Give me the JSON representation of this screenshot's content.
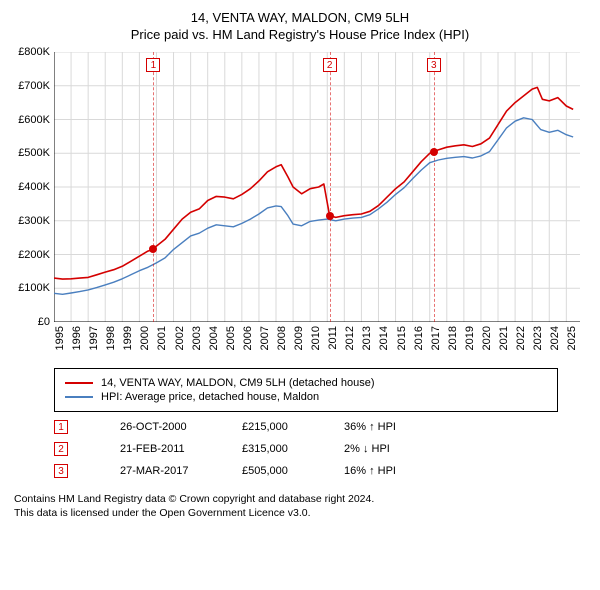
{
  "title": "14, VENTA WAY, MALDON, CM9 5LH",
  "subtitle": "Price paid vs. HM Land Registry's House Price Index (HPI)",
  "chart": {
    "type": "line",
    "background_color": "#ffffff",
    "grid_color": "#d9d9d9",
    "axis_color": "#000000",
    "xlim": [
      1995,
      2025.8
    ],
    "ylim": [
      0,
      800000
    ],
    "ytick_step": 100000,
    "yticks_labels": [
      "£0",
      "£100K",
      "£200K",
      "£300K",
      "£400K",
      "£500K",
      "£600K",
      "£700K",
      "£800K"
    ],
    "xticks": [
      1995,
      1996,
      1997,
      1998,
      1999,
      2000,
      2001,
      2002,
      2003,
      2004,
      2005,
      2006,
      2007,
      2008,
      2009,
      2010,
      2011,
      2012,
      2013,
      2014,
      2015,
      2016,
      2017,
      2018,
      2019,
      2020,
      2021,
      2022,
      2023,
      2024,
      2025
    ],
    "label_fontsize": 11,
    "series": [
      {
        "id": "price_paid",
        "label": "14, VENTA WAY, MALDON, CM9 5LH (detached house)",
        "color": "#d40000",
        "line_width": 1.6,
        "fill": "none",
        "data": [
          [
            1995,
            130000
          ],
          [
            1995.5,
            127000
          ],
          [
            1996,
            128000
          ],
          [
            1996.5,
            130000
          ],
          [
            1997,
            132000
          ],
          [
            1997.5,
            140000
          ],
          [
            1998,
            148000
          ],
          [
            1998.5,
            155000
          ],
          [
            1999,
            165000
          ],
          [
            1999.5,
            180000
          ],
          [
            2000,
            195000
          ],
          [
            2000.5,
            210000
          ],
          [
            2000.82,
            215000
          ],
          [
            2001,
            225000
          ],
          [
            2001.5,
            245000
          ],
          [
            2002,
            275000
          ],
          [
            2002.5,
            305000
          ],
          [
            2003,
            325000
          ],
          [
            2003.5,
            335000
          ],
          [
            2004,
            360000
          ],
          [
            2004.5,
            372000
          ],
          [
            2005,
            370000
          ],
          [
            2005.5,
            365000
          ],
          [
            2006,
            378000
          ],
          [
            2006.5,
            395000
          ],
          [
            2007,
            418000
          ],
          [
            2007.5,
            445000
          ],
          [
            2008,
            460000
          ],
          [
            2008.3,
            466000
          ],
          [
            2008.7,
            430000
          ],
          [
            2009,
            400000
          ],
          [
            2009.5,
            380000
          ],
          [
            2010,
            395000
          ],
          [
            2010.5,
            400000
          ],
          [
            2010.8,
            409000
          ],
          [
            2011.14,
            315000
          ],
          [
            2011.5,
            310000
          ],
          [
            2012,
            315000
          ],
          [
            2012.5,
            318000
          ],
          [
            2013,
            320000
          ],
          [
            2013.5,
            328000
          ],
          [
            2014,
            345000
          ],
          [
            2014.5,
            370000
          ],
          [
            2015,
            395000
          ],
          [
            2015.5,
            415000
          ],
          [
            2016,
            445000
          ],
          [
            2016.5,
            475000
          ],
          [
            2017,
            500000
          ],
          [
            2017.24,
            505000
          ],
          [
            2017.5,
            510000
          ],
          [
            2018,
            518000
          ],
          [
            2018.5,
            522000
          ],
          [
            2019,
            525000
          ],
          [
            2019.5,
            520000
          ],
          [
            2020,
            528000
          ],
          [
            2020.5,
            545000
          ],
          [
            2021,
            585000
          ],
          [
            2021.5,
            625000
          ],
          [
            2022,
            650000
          ],
          [
            2022.5,
            670000
          ],
          [
            2023,
            690000
          ],
          [
            2023.3,
            695000
          ],
          [
            2023.6,
            660000
          ],
          [
            2024,
            655000
          ],
          [
            2024.5,
            665000
          ],
          [
            2025,
            640000
          ],
          [
            2025.4,
            630000
          ]
        ]
      },
      {
        "id": "hpi",
        "label": "HPI: Average price, detached house, Maldon",
        "color": "#4a7fbf",
        "line_width": 1.4,
        "fill": "none",
        "data": [
          [
            1995,
            85000
          ],
          [
            1995.5,
            82000
          ],
          [
            1996,
            86000
          ],
          [
            1996.5,
            90000
          ],
          [
            1997,
            95000
          ],
          [
            1997.5,
            102000
          ],
          [
            1998,
            110000
          ],
          [
            1998.5,
            118000
          ],
          [
            1999,
            128000
          ],
          [
            1999.5,
            140000
          ],
          [
            2000,
            152000
          ],
          [
            2000.5,
            162000
          ],
          [
            2001,
            175000
          ],
          [
            2001.5,
            190000
          ],
          [
            2002,
            215000
          ],
          [
            2002.5,
            235000
          ],
          [
            2003,
            255000
          ],
          [
            2003.5,
            263000
          ],
          [
            2004,
            278000
          ],
          [
            2004.5,
            288000
          ],
          [
            2005,
            285000
          ],
          [
            2005.5,
            282000
          ],
          [
            2006,
            292000
          ],
          [
            2006.5,
            305000
          ],
          [
            2007,
            320000
          ],
          [
            2007.5,
            338000
          ],
          [
            2008,
            344000
          ],
          [
            2008.3,
            342000
          ],
          [
            2008.7,
            315000
          ],
          [
            2009,
            290000
          ],
          [
            2009.5,
            285000
          ],
          [
            2010,
            298000
          ],
          [
            2010.5,
            302000
          ],
          [
            2011,
            305000
          ],
          [
            2011.5,
            300000
          ],
          [
            2012,
            305000
          ],
          [
            2012.5,
            308000
          ],
          [
            2013,
            310000
          ],
          [
            2013.5,
            318000
          ],
          [
            2014,
            335000
          ],
          [
            2014.5,
            355000
          ],
          [
            2015,
            378000
          ],
          [
            2015.5,
            398000
          ],
          [
            2016,
            425000
          ],
          [
            2016.5,
            450000
          ],
          [
            2017,
            472000
          ],
          [
            2017.5,
            480000
          ],
          [
            2018,
            485000
          ],
          [
            2018.5,
            488000
          ],
          [
            2019,
            490000
          ],
          [
            2019.5,
            486000
          ],
          [
            2020,
            492000
          ],
          [
            2020.5,
            505000
          ],
          [
            2021,
            540000
          ],
          [
            2021.5,
            575000
          ],
          [
            2022,
            595000
          ],
          [
            2022.5,
            605000
          ],
          [
            2023,
            600000
          ],
          [
            2023.5,
            570000
          ],
          [
            2024,
            562000
          ],
          [
            2024.5,
            568000
          ],
          [
            2025,
            555000
          ],
          [
            2025.4,
            548000
          ]
        ]
      }
    ],
    "sale_markers": [
      {
        "n": "1",
        "x": 2000.82,
        "y": 215000,
        "color": "#d40000"
      },
      {
        "n": "2",
        "x": 2011.14,
        "y": 315000,
        "color": "#d40000"
      },
      {
        "n": "3",
        "x": 2017.24,
        "y": 505000,
        "color": "#d40000"
      }
    ],
    "marker_box_color": "#d40000",
    "marker_vline_color": "#d40000"
  },
  "legend": {
    "border_color": "#000000",
    "items": [
      {
        "color": "#d40000",
        "text": "14, VENTA WAY, MALDON, CM9 5LH (detached house)"
      },
      {
        "color": "#4a7fbf",
        "text": "HPI: Average price, detached house, Maldon"
      }
    ]
  },
  "sales": [
    {
      "n": "1",
      "date": "26-OCT-2000",
      "price": "£215,000",
      "hpi": "36% ↑ HPI"
    },
    {
      "n": "2",
      "date": "21-FEB-2011",
      "price": "£315,000",
      "hpi": "2% ↓ HPI"
    },
    {
      "n": "3",
      "date": "27-MAR-2017",
      "price": "£505,000",
      "hpi": "16% ↑ HPI"
    }
  ],
  "footer": {
    "line1": "Contains HM Land Registry data © Crown copyright and database right 2024.",
    "line2": "This data is licensed under the Open Government Licence v3.0."
  }
}
